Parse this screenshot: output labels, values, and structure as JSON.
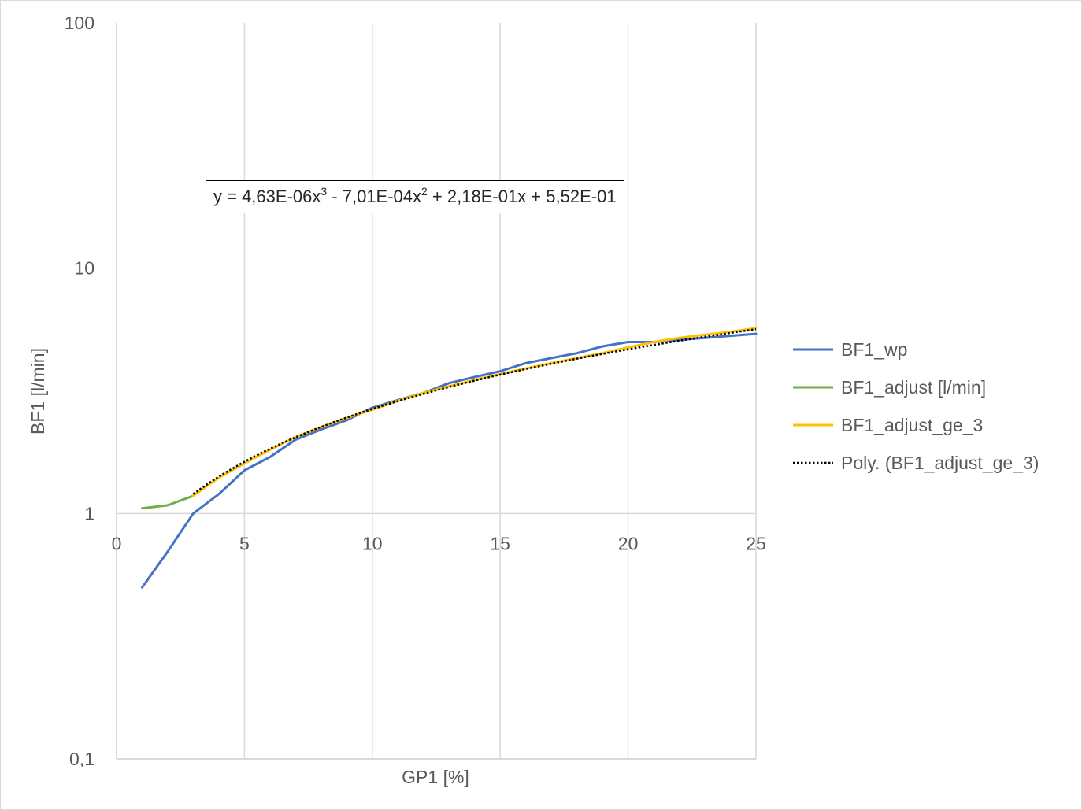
{
  "chart_data": {
    "type": "line",
    "xlabel": "GP1 [%]",
    "ylabel": "BF1 [l/min]",
    "xlim": [
      0,
      25
    ],
    "ylim": [
      0.1,
      100
    ],
    "y_scale": "log",
    "x_ticks": [
      0,
      5,
      10,
      15,
      20,
      25
    ],
    "y_ticks": [
      {
        "value": 0.1,
        "label": "0,1"
      },
      {
        "value": 1,
        "label": "1"
      },
      {
        "value": 10,
        "label": "10"
      },
      {
        "value": 100,
        "label": "100"
      }
    ],
    "grid": "vertical",
    "legend_position": "right",
    "series": [
      {
        "name": "BF1_wp",
        "color": "#4472c4",
        "style": "solid",
        "x": [
          1,
          2,
          3,
          4,
          5,
          6,
          7,
          8,
          9,
          10,
          11,
          12,
          13,
          14,
          15,
          16,
          17,
          18,
          19,
          20,
          21,
          22,
          23,
          24,
          25
        ],
        "y": [
          0.5,
          0.7,
          1.0,
          1.2,
          1.5,
          1.7,
          2.0,
          2.2,
          2.4,
          2.7,
          2.9,
          3.1,
          3.4,
          3.6,
          3.8,
          4.1,
          4.3,
          4.5,
          4.8,
          5.0,
          5.0,
          5.1,
          5.2,
          5.3,
          5.4
        ]
      },
      {
        "name": "BF1_adjust [l/min]",
        "color": "#70ad47",
        "style": "solid",
        "x": [
          1,
          2,
          3
        ],
        "y": [
          1.05,
          1.08,
          1.18
        ]
      },
      {
        "name": "BF1_adjust_ge_3",
        "color": "#ffc000",
        "style": "solid",
        "x": [
          3,
          4,
          5,
          6,
          7,
          8,
          9,
          10,
          11,
          12,
          13,
          14,
          15,
          16,
          17,
          18,
          19,
          20,
          21,
          22,
          23,
          24,
          25
        ],
        "y": [
          1.18,
          1.4,
          1.6,
          1.82,
          2.05,
          2.25,
          2.45,
          2.65,
          2.88,
          3.1,
          3.3,
          3.5,
          3.7,
          3.9,
          4.1,
          4.3,
          4.5,
          4.75,
          5.0,
          5.2,
          5.35,
          5.5,
          5.7
        ]
      },
      {
        "name": "Poly. (BF1_adjust_ge_3)",
        "color": "#000000",
        "style": "dotted",
        "trendline": "polynomial",
        "coefficients": [
          4.63e-06,
          -0.000701,
          0.218,
          0.552
        ],
        "x_range": [
          3,
          25
        ]
      }
    ],
    "annotations": [
      {
        "type": "equation",
        "text": "y = 4,63E-06x3 - 7,01E-04x2 + 2,18E-01x + 5,52E-01",
        "parts": [
          {
            "t": "y = 4,63E-06x"
          },
          {
            "t": "3",
            "sup": true
          },
          {
            "t": " - 7,01E-04x"
          },
          {
            "t": "2",
            "sup": true
          },
          {
            "t": " + 2,18E-01x + 5,52E-01"
          }
        ]
      }
    ]
  }
}
